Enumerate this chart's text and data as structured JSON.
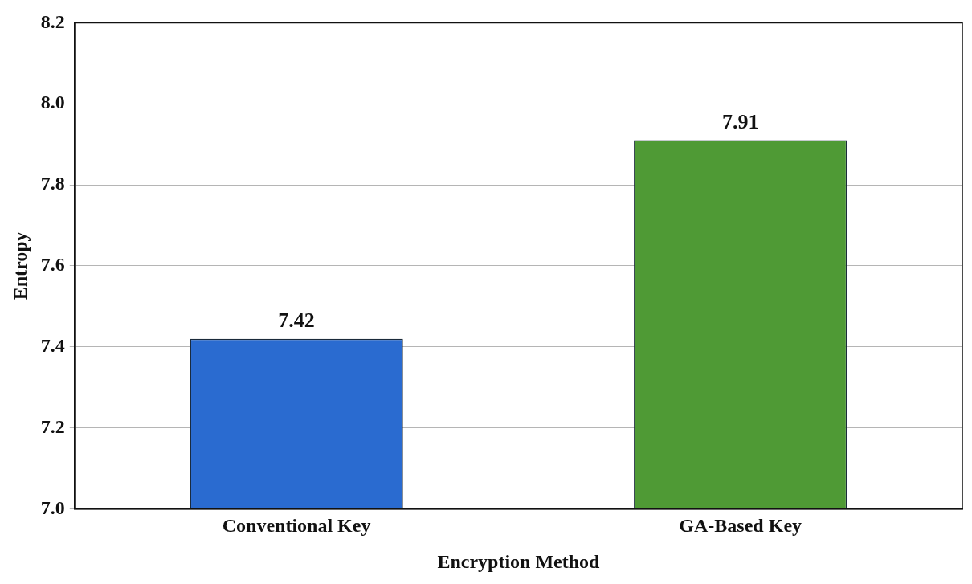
{
  "chart_data": {
    "type": "bar",
    "xlabel": "Encryption Method",
    "ylabel": "Entropy",
    "categories": [
      "Conventional Key",
      "GA-Based Key"
    ],
    "values": [
      7.42,
      7.91
    ],
    "colors": [
      "#2a6bd0",
      "#4f9a35"
    ],
    "ylim": [
      7.0,
      8.2
    ],
    "yticks": [
      {
        "value": 7.0,
        "label": "7.0"
      },
      7.2,
      7.4,
      7.6,
      7.8,
      {
        "value": 8.0,
        "label": "8.0"
      },
      8.2
    ],
    "grid": "y",
    "data_labels": true,
    "legend": false
  }
}
